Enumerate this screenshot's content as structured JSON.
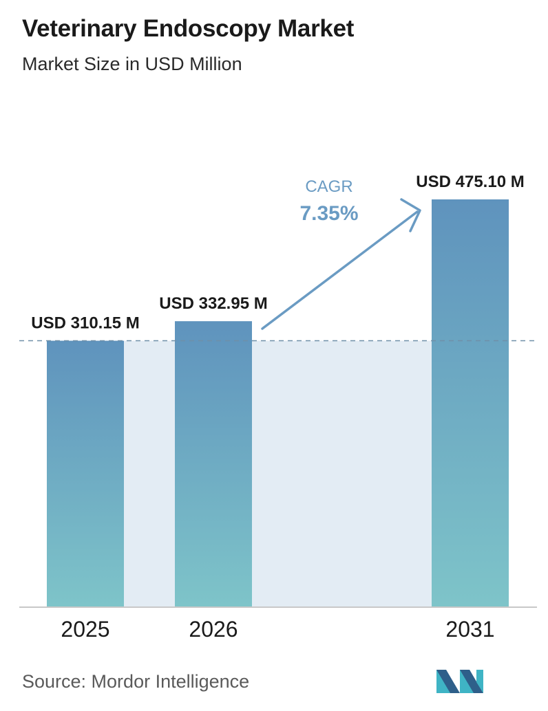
{
  "header": {
    "title": "Veterinary Endoscopy Market",
    "subtitle": "Market Size in USD Million"
  },
  "footer": {
    "source": "Source:  Mordor Intelligence"
  },
  "colors": {
    "bar_top": "#5f93bd",
    "bar_bottom": "#7ec4c9",
    "band": "#e3ecf4",
    "dashed_line": "#6f8fa8",
    "arrow": "#6a9bc3",
    "cagr_text": "#6a9bc3",
    "axis": "#b5b5b5",
    "logo_dark": "#2e5f8a",
    "logo_light": "#3fb4c5"
  },
  "icons": {
    "logo": "mordor-intelligence-logo-icon"
  },
  "chart_data": {
    "type": "bar",
    "categories": [
      "2025",
      "2026",
      "2031"
    ],
    "values": [
      310.15,
      332.95,
      475.1
    ],
    "data_labels": [
      "USD 310.15 M",
      "USD 332.95 M",
      "USD 475.10 M"
    ],
    "title": "Veterinary Endoscopy Market",
    "subtitle": "Market Size in USD Million",
    "xlabel": "",
    "ylabel": "",
    "ylim": [
      0,
      475.1
    ],
    "grid": false,
    "reference_line_value": 310.15,
    "annotation": {
      "label": "CAGR",
      "value": "7.35%"
    }
  }
}
